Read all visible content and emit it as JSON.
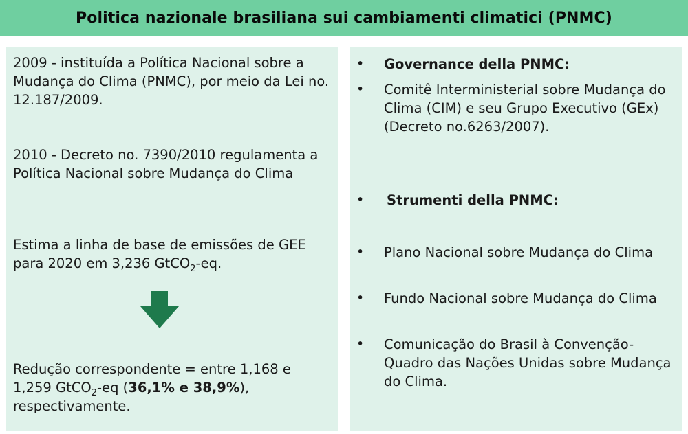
{
  "title": "Politica nazionale brasiliana sui cambiamenti climatici (PNMC)",
  "left": {
    "p1": "2009  - instituída a Política Nacional sobre a Mudança do Clima (PNMC), por meio da Lei no. 12.187/2009.",
    "p2": "2010 - Decreto no. 7390/2010 regulamenta a Política Nacional sobre Mudança do Clima",
    "p3_pre": "Estima a linha de base de emissões de GEE para 2020 em 3,236 GtCO",
    "p3_sub": "2",
    "p3_post": "-eq.",
    "p4_pre": "Redução correspondente = entre 1,168 e 1,259 GtCO",
    "p4_sub": "2",
    "p4_mid": "-eq (",
    "p4_bold": "36,1% e 38,9%",
    "p4_post": "), respectivamente.",
    "arrow_icon": "down-arrow",
    "arrow_color": "#1e7a4c"
  },
  "right": {
    "bullet_char": "•",
    "governance_heading": "Governance della PNMC:",
    "governance_item": "Comitê Interministerial sobre Mudança do Clima (CIM) e seu Grupo Executivo (GEx) (Decreto no.6263/2007).",
    "instruments_heading": "Strumenti della PNMC:",
    "instruments": [
      "Plano Nacional sobre Mudança do Clima",
      "Fundo Nacional sobre Mudança do Clima",
      "Comunicação do Brasil à Convenção-Quadro das Nações Unidas sobre Mudança do Clima."
    ]
  },
  "colors": {
    "title_bg": "#6fcfa0",
    "panel_bg": "#dff2ea"
  }
}
